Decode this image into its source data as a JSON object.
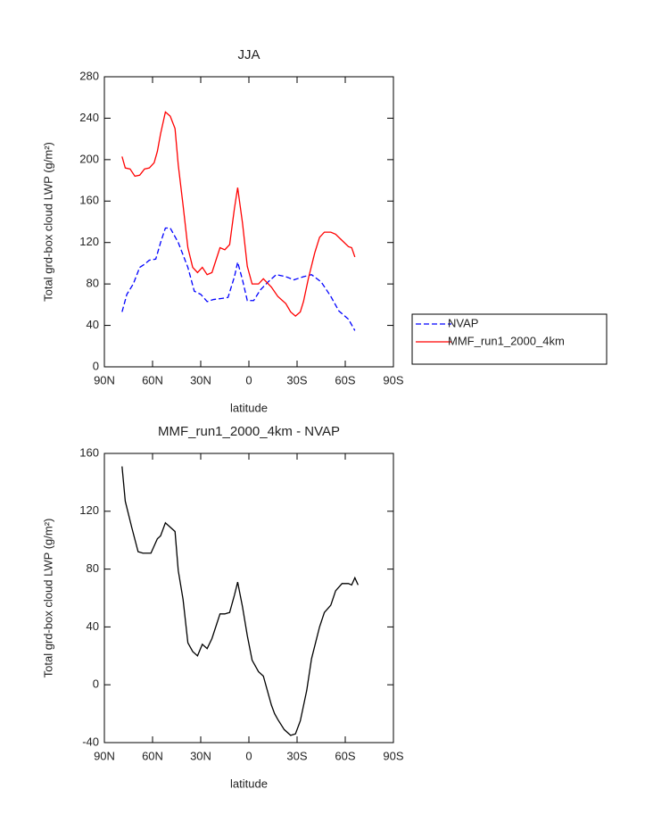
{
  "chart_data": [
    {
      "type": "line",
      "title": "JJA",
      "xlabel": "latitude",
      "ylabel": "Total grd-box cloud LWP (g/m²)",
      "xlim": [
        90,
        -90
      ],
      "xticks": [
        {
          "value": 90,
          "label": "90N"
        },
        {
          "value": 60,
          "label": "60N"
        },
        {
          "value": 30,
          "label": "30N"
        },
        {
          "value": 0,
          "label": "0"
        },
        {
          "value": -30,
          "label": "30S"
        },
        {
          "value": -60,
          "label": "60S"
        },
        {
          "value": -90,
          "label": "90S"
        }
      ],
      "ylim": [
        0,
        280
      ],
      "yticks": [
        0,
        40,
        80,
        120,
        160,
        200,
        240,
        280
      ],
      "legend": "right",
      "series": [
        {
          "name": "NVAP",
          "color": "#0000ff",
          "line_style": "dashed",
          "x": [
            79,
            76,
            72,
            68,
            65,
            62,
            58,
            55,
            52,
            49,
            44,
            38,
            34,
            30,
            26,
            22,
            17,
            13,
            9,
            7,
            4,
            1,
            -3,
            -7,
            -12,
            -17,
            -23,
            -28,
            -34,
            -39,
            -45,
            -51,
            -56,
            -62,
            -66
          ],
          "values": [
            53,
            70,
            80,
            96,
            99,
            103,
            104,
            120,
            134,
            134,
            120,
            96,
            73,
            70,
            63,
            65,
            66,
            67,
            87,
            101,
            84,
            64,
            64,
            74,
            82,
            89,
            87,
            84,
            87,
            89,
            82,
            68,
            54,
            46,
            35
          ]
        },
        {
          "name": "MMF_run1_2000_4km",
          "color": "#ff0000",
          "line_style": "solid",
          "x": [
            79,
            77,
            74,
            71,
            68,
            65,
            62,
            59,
            57,
            55,
            52,
            49,
            46,
            44,
            41,
            38,
            35,
            32,
            29,
            26,
            23,
            18,
            15,
            12,
            9,
            7,
            4,
            1,
            -2,
            -6,
            -9,
            -14,
            -18,
            -23,
            -26,
            -29,
            -32,
            -34,
            -37,
            -41,
            -44,
            -47,
            -51,
            -54,
            -58,
            -62,
            -64,
            -66
          ],
          "values": [
            203,
            192,
            191,
            184,
            185,
            191,
            192,
            197,
            208,
            225,
            246,
            242,
            230,
            195,
            156,
            115,
            96,
            91,
            96,
            89,
            91,
            115,
            113,
            118,
            153,
            173,
            139,
            97,
            80,
            80,
            85,
            77,
            68,
            61,
            53,
            49,
            53,
            63,
            85,
            110,
            125,
            130,
            130,
            128,
            122,
            116,
            115,
            106
          ]
        }
      ]
    },
    {
      "type": "line",
      "title": "MMF_run1_2000_4km - NVAP",
      "xlabel": "latitude",
      "ylabel": "Total grd-box cloud LWP (g/m²)",
      "xlim": [
        90,
        -90
      ],
      "xticks": [
        {
          "value": 90,
          "label": "90N"
        },
        {
          "value": 60,
          "label": "60N"
        },
        {
          "value": 30,
          "label": "30N"
        },
        {
          "value": 0,
          "label": "0"
        },
        {
          "value": -30,
          "label": "30S"
        },
        {
          "value": -60,
          "label": "60S"
        },
        {
          "value": -90,
          "label": "90S"
        }
      ],
      "ylim": [
        -40,
        160
      ],
      "yticks": [
        -40,
        0,
        40,
        80,
        120,
        160
      ],
      "series": [
        {
          "color": "#000000",
          "line_style": "solid",
          "x": [
            79,
            77,
            73,
            69,
            66,
            61,
            57,
            55,
            52,
            49,
            46,
            44,
            41,
            38,
            35,
            32,
            29,
            26,
            23,
            18,
            15,
            12,
            9,
            7,
            4,
            1,
            -2,
            -6,
            -9,
            -14,
            -16,
            -18,
            -22,
            -26,
            -29,
            -32,
            -36,
            -39,
            -44,
            -47,
            -51,
            -54,
            -58,
            -62,
            -64,
            -66,
            -68
          ],
          "values": [
            151,
            127,
            109,
            92,
            91,
            91,
            101,
            103,
            112,
            109,
            106,
            79,
            59,
            29,
            23,
            20,
            28,
            25,
            32,
            49,
            49,
            50,
            62,
            71,
            54,
            34,
            17,
            9,
            6,
            -14,
            -20,
            -24,
            -31,
            -35,
            -34,
            -25,
            -4,
            18,
            40,
            50,
            55,
            65,
            70,
            70,
            69,
            74,
            69
          ]
        }
      ]
    }
  ]
}
